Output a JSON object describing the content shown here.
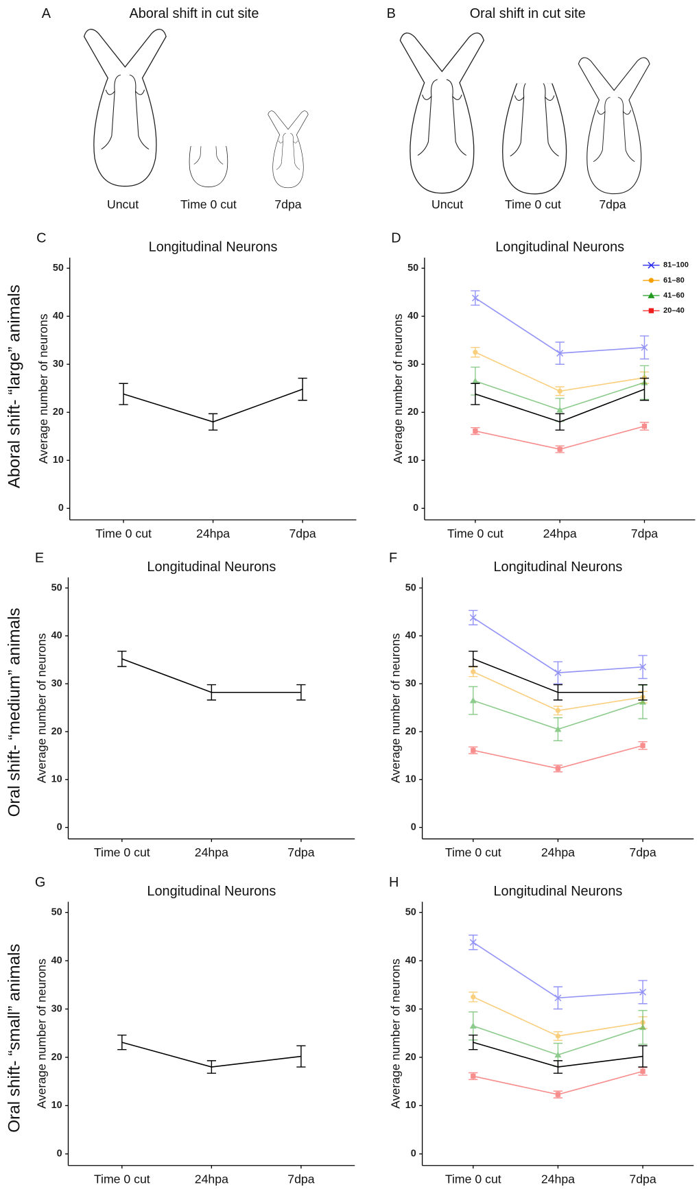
{
  "diagrams": [
    {
      "panel": "A",
      "title": "Aboral shift in cut site",
      "labels": [
        "Uncut",
        "Time 0 cut",
        "7dpa"
      ]
    },
    {
      "panel": "B",
      "title": "Oral shift in cut site",
      "labels": [
        "Uncut",
        "Time 0 cut",
        "7dpa"
      ]
    }
  ],
  "row_labels": [
    "Aboral shift- “large” animals",
    "Oral shift- “medium” animals",
    "Oral shift- “small” animals"
  ],
  "chart_data": [
    {
      "panel": "C",
      "type": "line",
      "title": "Longitudinal Neurons",
      "y_label": "Average number of neurons",
      "categories": [
        "Time 0 cut",
        "24hpa",
        "7dpa"
      ],
      "series": [
        {
          "color": "#000000",
          "values": [
            23.8,
            18.0,
            24.8
          ],
          "errors": [
            2.2,
            1.7,
            2.3
          ]
        }
      ],
      "ylim": [
        -2.4,
        52.2
      ],
      "yticks": [
        0,
        10,
        20,
        30,
        40,
        50
      ]
    },
    {
      "panel": "D",
      "type": "line",
      "title": "Longitudinal Neurons",
      "y_label": "Average number of neurons",
      "categories": [
        "Time 0 cut",
        "24hpa",
        "7dpa"
      ],
      "series": [
        {
          "name": "81–100",
          "color": "#2b2bf0",
          "marker": "x",
          "values": [
            43.8,
            32.3,
            33.5
          ],
          "errors": [
            1.5,
            2.3,
            2.4
          ]
        },
        {
          "name": "61–80",
          "color": "#f5a000",
          "marker": "circle",
          "values": [
            32.5,
            24.4,
            27.2
          ],
          "errors": [
            1.0,
            0.9,
            1.2
          ]
        },
        {
          "name": "41–60",
          "color": "#1f9a1f",
          "marker": "triangle",
          "values": [
            26.5,
            20.5,
            26.2
          ],
          "errors": [
            2.9,
            2.4,
            3.5
          ]
        },
        {
          "name": "20–40",
          "color": "#f01d1d",
          "marker": "square",
          "values": [
            16.1,
            12.3,
            17.1
          ],
          "errors": [
            0.7,
            0.7,
            0.8
          ]
        },
        {
          "color": "#000000",
          "values": [
            23.8,
            18.0,
            24.8
          ],
          "errors": [
            2.2,
            1.7,
            2.3
          ]
        }
      ],
      "legend": "top-right",
      "ylim": [
        -2.4,
        52.2
      ],
      "yticks": [
        0,
        10,
        20,
        30,
        40,
        50
      ]
    },
    {
      "panel": "E",
      "type": "line",
      "title": "Longitudinal Neurons",
      "y_label": "Average number of neurons",
      "categories": [
        "Time 0 cut",
        "24hpa",
        "7dpa"
      ],
      "series": [
        {
          "color": "#000000",
          "values": [
            35.2,
            28.2,
            28.2
          ],
          "errors": [
            1.6,
            1.6,
            1.6
          ]
        }
      ],
      "ylim": [
        -2.4,
        52.2
      ],
      "yticks": [
        0,
        10,
        20,
        30,
        40,
        50
      ]
    },
    {
      "panel": "F",
      "type": "line",
      "title": "Longitudinal Neurons",
      "y_label": "Average number of neurons",
      "categories": [
        "Time 0 cut",
        "24hpa",
        "7dpa"
      ],
      "series": [
        {
          "name": "81–100",
          "color": "#2b2bf0",
          "marker": "x",
          "values": [
            43.8,
            32.3,
            33.5
          ],
          "errors": [
            1.5,
            2.3,
            2.4
          ]
        },
        {
          "name": "61–80",
          "color": "#f5a000",
          "marker": "circle",
          "values": [
            32.5,
            24.4,
            27.2
          ],
          "errors": [
            1.0,
            0.9,
            1.2
          ]
        },
        {
          "name": "41–60",
          "color": "#1f9a1f",
          "marker": "triangle",
          "values": [
            26.5,
            20.5,
            26.2
          ],
          "errors": [
            2.9,
            2.4,
            3.5
          ]
        },
        {
          "name": "20–40",
          "color": "#f01d1d",
          "marker": "square",
          "values": [
            16.1,
            12.3,
            17.1
          ],
          "errors": [
            0.7,
            0.7,
            0.8
          ]
        },
        {
          "color": "#000000",
          "values": [
            35.2,
            28.2,
            28.2
          ],
          "errors": [
            1.6,
            1.6,
            1.6
          ]
        }
      ],
      "ylim": [
        -2.4,
        52.2
      ],
      "yticks": [
        0,
        10,
        20,
        30,
        40,
        50
      ]
    },
    {
      "panel": "G",
      "type": "line",
      "title": "Longitudinal Neurons",
      "y_label": "Average number of neurons",
      "categories": [
        "Time 0 cut",
        "24hpa",
        "7dpa"
      ],
      "series": [
        {
          "color": "#000000",
          "values": [
            23.1,
            18.0,
            20.2
          ],
          "errors": [
            1.5,
            1.3,
            2.2
          ]
        }
      ],
      "ylim": [
        -2.4,
        52.2
      ],
      "yticks": [
        0,
        10,
        20,
        30,
        40,
        50
      ]
    },
    {
      "panel": "H",
      "type": "line",
      "title": "Longitudinal Neurons",
      "y_label": "Average number of neurons",
      "categories": [
        "Time 0 cut",
        "24hpa",
        "7dpa"
      ],
      "series": [
        {
          "name": "81–100",
          "color": "#2b2bf0",
          "marker": "x",
          "values": [
            43.8,
            32.3,
            33.5
          ],
          "errors": [
            1.5,
            2.3,
            2.4
          ]
        },
        {
          "name": "61–80",
          "color": "#f5a000",
          "marker": "circle",
          "values": [
            32.5,
            24.4,
            27.2
          ],
          "errors": [
            1.0,
            0.9,
            1.2
          ]
        },
        {
          "name": "41–60",
          "color": "#1f9a1f",
          "marker": "triangle",
          "values": [
            26.5,
            20.5,
            26.2
          ],
          "errors": [
            2.9,
            2.4,
            3.5
          ]
        },
        {
          "name": "20–40",
          "color": "#f01d1d",
          "marker": "square",
          "values": [
            16.1,
            12.3,
            17.1
          ],
          "errors": [
            0.7,
            0.7,
            0.8
          ]
        },
        {
          "color": "#000000",
          "values": [
            23.1,
            18.0,
            20.2
          ],
          "errors": [
            1.5,
            1.3,
            2.2
          ]
        }
      ],
      "ylim": [
        -2.4,
        52.2
      ],
      "yticks": [
        0,
        10,
        20,
        30,
        40,
        50
      ]
    }
  ]
}
